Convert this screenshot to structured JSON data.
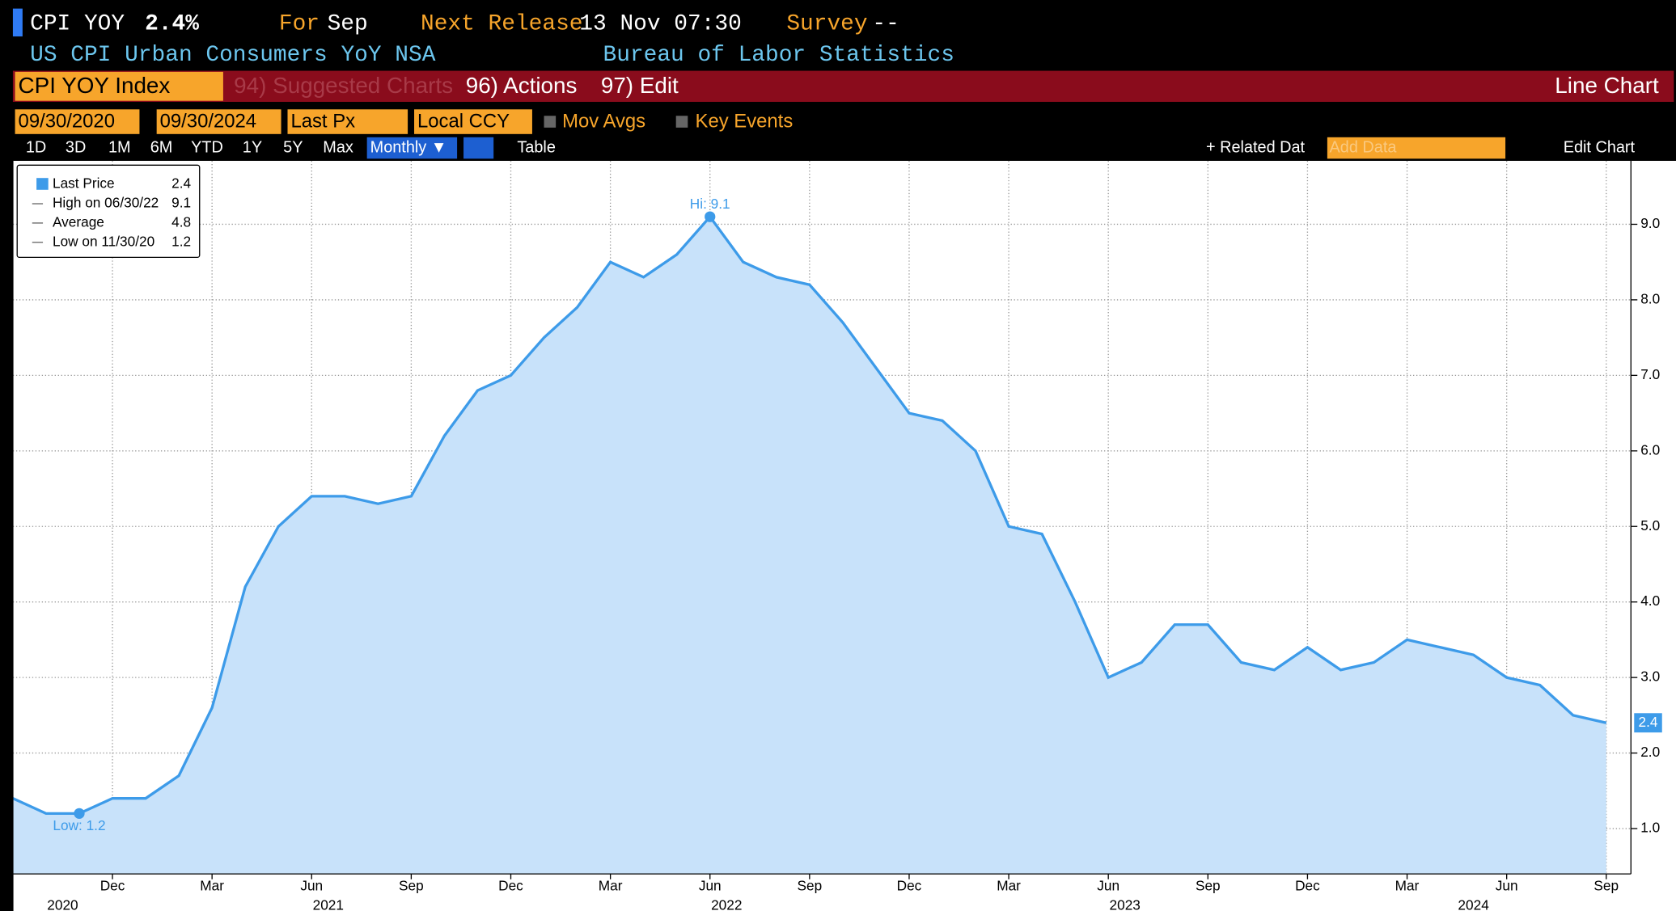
{
  "header": {
    "ticker": "CPI YOY",
    "last": "2.4%",
    "for_label": "For",
    "for_value": "Sep",
    "release_label": "Next Release",
    "release_value": "13 Nov 07:30",
    "survey_label": "Survey",
    "survey_value": "--",
    "description": "US CPI Urban Consumers YoY NSA",
    "source": "Bureau of Labor Statistics",
    "security": "CPI YOY Index",
    "menu": [
      "94) Suggested Charts",
      "96) Actions",
      "97) Edit"
    ],
    "chart_kind": "Line Chart",
    "start_date": "09/30/2020",
    "end_date": "09/30/2024",
    "field": "Last Px",
    "currency": "Local CCY",
    "mov_avgs": "Mov Avgs",
    "key_events": "Key Events",
    "ranges": [
      "1D",
      "3D",
      "1M",
      "6M",
      "YTD",
      "1Y",
      "5Y",
      "Max"
    ],
    "frequency": "Monthly ▼",
    "table": "Table",
    "related": "+ Related Dat",
    "add_data": "Add Data",
    "edit_chart": "Edit Chart"
  },
  "chart_data": {
    "type": "line",
    "categories": [
      null,
      null,
      null,
      "Dec",
      null,
      null,
      "Mar",
      null,
      null,
      "Jun",
      null,
      null,
      "Sep",
      null,
      null,
      "Dec",
      null,
      null,
      "Mar",
      null,
      null,
      "Jun",
      null,
      null,
      "Sep",
      null,
      null,
      "Dec",
      null,
      null,
      "Mar",
      null,
      null,
      "Jun",
      null,
      null,
      "Sep",
      null,
      null,
      "Dec",
      null,
      null,
      "Mar",
      null,
      null,
      "Jun",
      null,
      null,
      "Sep"
    ],
    "years": [
      "2020",
      "2021",
      "2022",
      "2023",
      "2024"
    ],
    "series": [
      {
        "name": "Last Price",
        "color": "#3d9be9",
        "fill": "#c8e2fa",
        "values": [
          1.4,
          1.2,
          1.2,
          1.4,
          1.4,
          1.7,
          2.6,
          4.2,
          5.0,
          5.4,
          5.4,
          5.3,
          5.4,
          6.2,
          6.8,
          7.0,
          7.5,
          7.9,
          8.5,
          8.3,
          8.6,
          9.1,
          8.5,
          8.3,
          8.2,
          7.7,
          7.1,
          6.5,
          6.4,
          6.0,
          5.0,
          4.9,
          4.0,
          3.0,
          3.2,
          3.7,
          3.7,
          3.2,
          3.1,
          3.4,
          3.1,
          3.2,
          3.5,
          3.4,
          3.3,
          3.0,
          2.9,
          2.5,
          2.4
        ]
      }
    ],
    "ylim": [
      0.4,
      9.84
    ],
    "yticks": [
      {
        "value": 1,
        "label": "1.0"
      },
      {
        "value": 2,
        "label": "2.0"
      },
      {
        "value": 3,
        "label": "3.0"
      },
      {
        "value": 4,
        "label": "4.0"
      },
      {
        "value": 5,
        "label": "5.0"
      },
      {
        "value": 6,
        "label": "6.0"
      },
      {
        "value": 7,
        "label": "7.0"
      },
      {
        "value": 8,
        "label": "8.0"
      },
      {
        "value": 9,
        "label": "9.0"
      }
    ],
    "grid": true,
    "legend": "top-left",
    "legend_stats": [
      {
        "value": 2.4
      },
      {
        "label": "High on 06/30/22",
        "value": 9.1
      },
      {
        "label": "Average",
        "value": 4.8
      },
      {
        "label": "Low on 11/30/20",
        "value": 1.2
      }
    ],
    "annotations": [
      {
        "label": "Hi: 9.1",
        "value": 9.1
      },
      {
        "label": "Low: 1.2",
        "value": 1.2
      }
    ]
  }
}
